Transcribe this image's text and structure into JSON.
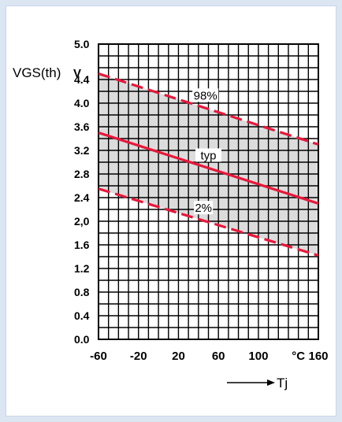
{
  "chart_data": {
    "type": "line",
    "title": "",
    "ylabel": "VGS(th)",
    "yunit": "V",
    "xlabel": "Tj",
    "xunit": "°C",
    "xlim": [
      -60,
      160
    ],
    "ylim": [
      0.0,
      5.0
    ],
    "grid": true,
    "x_ticks": [
      "-60",
      "-20",
      "20",
      "60",
      "100",
      "°C",
      "160"
    ],
    "y_ticks": [
      "5.0",
      "4.4",
      "4.0",
      "3.6",
      "3.2",
      "2.8",
      "2.4",
      "2,0",
      "1.6",
      "1.2",
      "0.8",
      "0.4",
      "0.0"
    ],
    "series": [
      {
        "name": "98%",
        "style": "dashed",
        "x": [
          -60,
          160
        ],
        "y": [
          4.5,
          3.3
        ]
      },
      {
        "name": "typ",
        "style": "solid",
        "x": [
          -60,
          160
        ],
        "y": [
          3.5,
          2.3
        ]
      },
      {
        "name": "2%",
        "style": "dashed",
        "x": [
          -60,
          160
        ],
        "y": [
          2.55,
          1.42
        ]
      }
    ],
    "band_between": [
      "98%",
      "2%"
    ],
    "colors": {
      "curve": "#e8173a",
      "band": "#dcdcdc",
      "grid": "#000000",
      "background": "#dce6f2"
    }
  }
}
